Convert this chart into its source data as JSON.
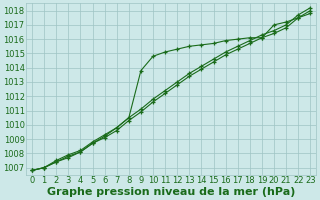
{
  "xlabel": "Graphe pression niveau de la mer (hPa)",
  "ylim": [
    1006.5,
    1018.5
  ],
  "xlim": [
    -0.5,
    23.5
  ],
  "yticks": [
    1007,
    1008,
    1009,
    1010,
    1011,
    1012,
    1013,
    1014,
    1015,
    1016,
    1017,
    1018
  ],
  "xticks": [
    0,
    1,
    2,
    3,
    4,
    5,
    6,
    7,
    8,
    9,
    10,
    11,
    12,
    13,
    14,
    15,
    16,
    17,
    18,
    19,
    20,
    21,
    22,
    23
  ],
  "background_color": "#cde8e8",
  "grid_color": "#9ec4c4",
  "line_color": "#1a6b1a",
  "marker": "+",
  "line1_y": [
    1006.8,
    1007.0,
    1007.4,
    1007.7,
    1008.1,
    1008.7,
    1009.2,
    1009.8,
    1010.5,
    1013.8,
    1014.8,
    1015.1,
    1015.3,
    1015.5,
    1015.6,
    1015.7,
    1015.9,
    1016.0,
    1016.1,
    1016.1,
    1017.0,
    1017.2,
    1017.5,
    1017.8
  ],
  "line2_y": [
    1006.8,
    1007.0,
    1007.4,
    1007.8,
    1008.1,
    1008.7,
    1009.1,
    1009.6,
    1010.3,
    1010.9,
    1011.6,
    1012.2,
    1012.8,
    1013.4,
    1013.9,
    1014.4,
    1014.9,
    1015.3,
    1015.7,
    1016.1,
    1016.4,
    1016.8,
    1017.5,
    1018.0
  ],
  "line3_y": [
    1006.8,
    1007.0,
    1007.5,
    1007.9,
    1008.2,
    1008.8,
    1009.3,
    1009.8,
    1010.5,
    1011.1,
    1011.8,
    1012.4,
    1013.0,
    1013.6,
    1014.1,
    1014.6,
    1015.1,
    1015.5,
    1015.9,
    1016.3,
    1016.6,
    1017.0,
    1017.7,
    1018.2
  ],
  "font_color": "#1a6b1a",
  "title_fontsize": 8.0,
  "tick_fontsize": 6.0
}
